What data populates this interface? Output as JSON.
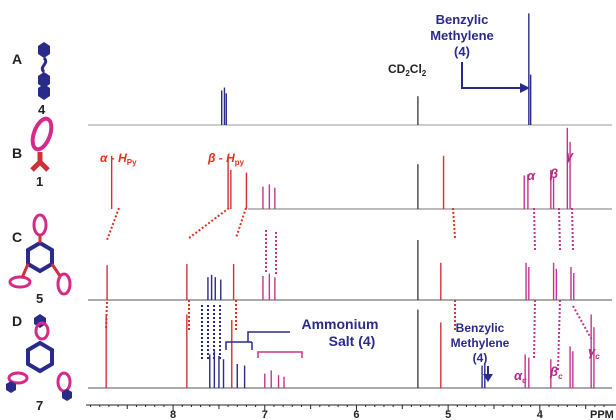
{
  "chart_data": {
    "type": "line",
    "xlabel": "PPM",
    "x_ticks": [
      8,
      7,
      6,
      5,
      4
    ],
    "xlim": [
      8.95,
      3.3
    ],
    "grid": false,
    "colors": {
      "spectrum_A": "#2a2a8a",
      "spectrum_B": "#d0303a",
      "spectrum_C_pink": "#c2348f",
      "spectrum_D_blue": "#2a2a8a",
      "baseline": "#444444",
      "alpha_py": "#e0301e",
      "pink_label": "#b02a86",
      "navy_label": "#2a2a8a"
    },
    "rows": [
      {
        "letter": "A",
        "compound": "4",
        "peaks": [
          {
            "ppm": 7.47,
            "h": 0.48,
            "color": "#2a2a8a"
          },
          {
            "ppm": 7.44,
            "h": 0.52,
            "color": "#2a2a8a"
          },
          {
            "ppm": 7.42,
            "h": 0.44,
            "color": "#2a2a8a"
          },
          {
            "ppm": 5.33,
            "h": 0.4,
            "color": "#444444"
          },
          {
            "ppm": 4.12,
            "h": 1.55,
            "color": "#2a2a8a"
          },
          {
            "ppm": 4.1,
            "h": 0.7,
            "color": "#2a2a8a"
          }
        ]
      },
      {
        "letter": "B",
        "compound": "1",
        "peaks": [
          {
            "ppm": 8.67,
            "h": 0.95,
            "color": "#d0303a"
          },
          {
            "ppm": 7.4,
            "h": 0.95,
            "color": "#d0303a"
          },
          {
            "ppm": 7.37,
            "h": 0.7,
            "color": "#d0303a"
          },
          {
            "ppm": 7.2,
            "h": 0.65,
            "color": "#d0303a"
          },
          {
            "ppm": 7.02,
            "h": 0.4,
            "color": "#c2348f"
          },
          {
            "ppm": 6.95,
            "h": 0.44,
            "color": "#c2348f"
          },
          {
            "ppm": 6.89,
            "h": 0.38,
            "color": "#c2348f"
          },
          {
            "ppm": 5.33,
            "h": 0.8,
            "color": "#444444"
          },
          {
            "ppm": 5.05,
            "h": 0.95,
            "color": "#d0303a"
          },
          {
            "ppm": 4.17,
            "h": 0.6,
            "color": "#c2348f"
          },
          {
            "ppm": 4.13,
            "h": 0.62,
            "color": "#c2348f"
          },
          {
            "ppm": 3.88,
            "h": 0.7,
            "color": "#c2348f"
          },
          {
            "ppm": 3.85,
            "h": 0.58,
            "color": "#c2348f"
          },
          {
            "ppm": 3.7,
            "h": 1.45,
            "color": "#c2348f"
          },
          {
            "ppm": 3.67,
            "h": 1.2,
            "color": "#c2348f"
          }
        ]
      },
      {
        "letter": "C",
        "compound": "5",
        "peaks": [
          {
            "ppm": 8.72,
            "h": 0.58,
            "color": "#d0303a"
          },
          {
            "ppm": 7.85,
            "h": 0.6,
            "color": "#d0303a"
          },
          {
            "ppm": 7.62,
            "h": 0.38,
            "color": "#2a2a8a"
          },
          {
            "ppm": 7.58,
            "h": 0.42,
            "color": "#2a2a8a"
          },
          {
            "ppm": 7.54,
            "h": 0.38,
            "color": "#2a2a8a"
          },
          {
            "ppm": 7.48,
            "h": 0.34,
            "color": "#2a2a8a"
          },
          {
            "ppm": 7.34,
            "h": 0.6,
            "color": "#d0303a"
          },
          {
            "ppm": 7.02,
            "h": 0.4,
            "color": "#c2348f"
          },
          {
            "ppm": 6.95,
            "h": 0.44,
            "color": "#c2348f"
          },
          {
            "ppm": 6.89,
            "h": 0.38,
            "color": "#c2348f"
          },
          {
            "ppm": 5.33,
            "h": 1.0,
            "color": "#444444"
          },
          {
            "ppm": 5.08,
            "h": 0.62,
            "color": "#d0303a"
          },
          {
            "ppm": 4.15,
            "h": 0.62,
            "color": "#c2348f"
          },
          {
            "ppm": 4.12,
            "h": 0.55,
            "color": "#c2348f"
          },
          {
            "ppm": 3.85,
            "h": 0.62,
            "color": "#c2348f"
          },
          {
            "ppm": 3.82,
            "h": 0.52,
            "color": "#c2348f"
          },
          {
            "ppm": 3.66,
            "h": 0.55,
            "color": "#c2348f"
          },
          {
            "ppm": 3.63,
            "h": 0.45,
            "color": "#c2348f"
          }
        ]
      },
      {
        "letter": "D",
        "compound": "7",
        "peaks": [
          {
            "ppm": 8.73,
            "h": 0.92,
            "color": "#d0303a"
          },
          {
            "ppm": 7.85,
            "h": 0.92,
            "color": "#d0303a"
          },
          {
            "ppm": 7.6,
            "h": 0.42,
            "color": "#2a2a8a"
          },
          {
            "ppm": 7.55,
            "h": 0.46,
            "color": "#2a2a8a"
          },
          {
            "ppm": 7.5,
            "h": 0.4,
            "color": "#2a2a8a"
          },
          {
            "ppm": 7.45,
            "h": 0.36,
            "color": "#2a2a8a"
          },
          {
            "ppm": 7.36,
            "h": 0.85,
            "color": "#d0303a"
          },
          {
            "ppm": 7.3,
            "h": 0.3,
            "color": "#2a2a8a"
          },
          {
            "ppm": 7.22,
            "h": 0.28,
            "color": "#2a2a8a"
          },
          {
            "ppm": 7.0,
            "h": 0.18,
            "color": "#c2348f"
          },
          {
            "ppm": 6.93,
            "h": 0.22,
            "color": "#c2348f"
          },
          {
            "ppm": 6.85,
            "h": 0.16,
            "color": "#c2348f"
          },
          {
            "ppm": 6.79,
            "h": 0.14,
            "color": "#c2348f"
          },
          {
            "ppm": 5.33,
            "h": 0.98,
            "color": "#444444"
          },
          {
            "ppm": 5.08,
            "h": 0.82,
            "color": "#d0303a"
          },
          {
            "ppm": 4.63,
            "h": 0.28,
            "color": "#2a2a8a"
          },
          {
            "ppm": 4.6,
            "h": 0.3,
            "color": "#2a2a8a"
          },
          {
            "ppm": 4.16,
            "h": 0.42,
            "color": "#c2348f"
          },
          {
            "ppm": 4.12,
            "h": 0.38,
            "color": "#c2348f"
          },
          {
            "ppm": 3.88,
            "h": 0.36,
            "color": "#c2348f"
          },
          {
            "ppm": 3.67,
            "h": 0.52,
            "color": "#c2348f"
          },
          {
            "ppm": 3.64,
            "h": 0.46,
            "color": "#c2348f"
          },
          {
            "ppm": 3.44,
            "h": 0.92,
            "color": "#c2348f"
          },
          {
            "ppm": 3.41,
            "h": 0.76,
            "color": "#c2348f"
          }
        ]
      }
    ],
    "annotations": {
      "cd2cl2": "CD",
      "cd2cl2_sub1": "2",
      "cd2cl2_mid": "Cl",
      "cd2cl2_sub2": "2",
      "benzylic_top_1": "Benzylic",
      "benzylic_top_2": "Methylene",
      "benzylic_top_3": "(4)",
      "alpha_py": "α - H",
      "alpha_py_sub": "Py",
      "beta_py": "β - H",
      "beta_py_sub": "py",
      "alpha": "α",
      "beta": "β",
      "gamma": "γ",
      "ammonium_1": "Ammonium",
      "ammonium_2": "Salt (4)",
      "benzylic_d_1": "Benzylic",
      "benzylic_d_2": "Methylene",
      "benzylic_d_3": "(4)",
      "alpha_c": "α",
      "alpha_c_sub": "c",
      "beta_c": "β",
      "beta_c_sub": "c",
      "gamma_c": "γ",
      "gamma_c_sub": "c"
    }
  }
}
